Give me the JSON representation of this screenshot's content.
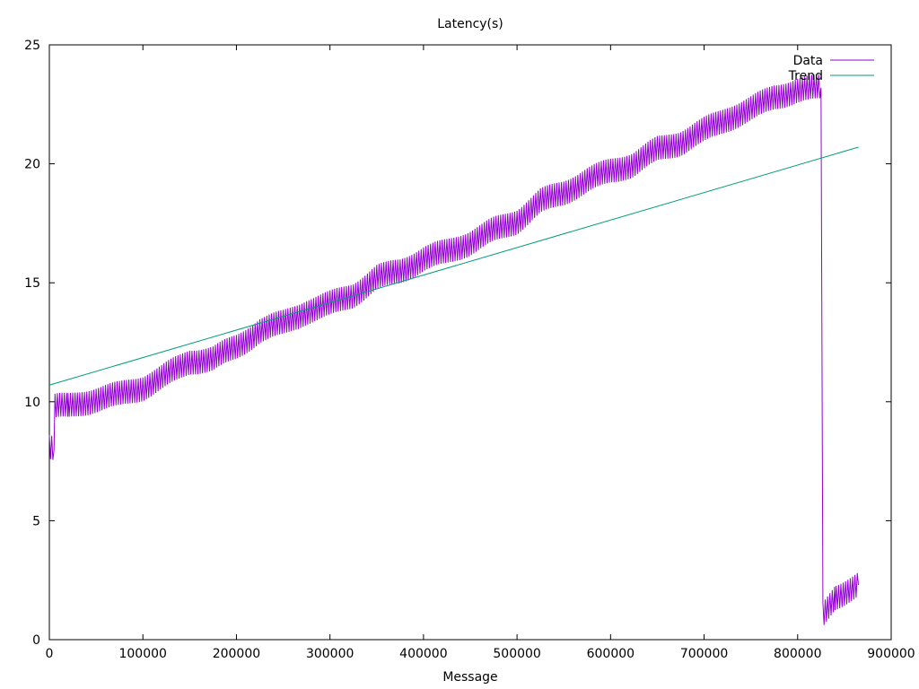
{
  "chart_data": {
    "type": "line",
    "title": "Latency(s)",
    "xlabel": "Message",
    "ylabel": "",
    "xlim": [
      0,
      900000
    ],
    "ylim": [
      0,
      25
    ],
    "x_ticks": [
      0,
      100000,
      200000,
      300000,
      400000,
      500000,
      600000,
      700000,
      800000,
      900000
    ],
    "y_ticks": [
      0,
      5,
      10,
      15,
      20,
      25
    ],
    "grid": false,
    "legend_position": "top-right",
    "series": [
      {
        "name": "Data",
        "color": "#9400d3",
        "style": "oscillating line (about ±0.5 s sawtooth around the trend)",
        "points": [
          [
            0,
            8.1
          ],
          [
            5000,
            8.0
          ],
          [
            6000,
            9.8
          ],
          [
            20000,
            9.8
          ],
          [
            50000,
            10.1
          ],
          [
            75000,
            10.3
          ],
          [
            100000,
            10.6
          ],
          [
            120000,
            11.0
          ],
          [
            150000,
            11.7
          ],
          [
            175000,
            11.8
          ],
          [
            200000,
            12.3
          ],
          [
            225000,
            13.0
          ],
          [
            250000,
            13.3
          ],
          [
            275000,
            13.8
          ],
          [
            300000,
            14.1
          ],
          [
            325000,
            14.5
          ],
          [
            350000,
            15.2
          ],
          [
            375000,
            15.5
          ],
          [
            400000,
            16.0
          ],
          [
            425000,
            16.3
          ],
          [
            450000,
            16.7
          ],
          [
            475000,
            17.2
          ],
          [
            500000,
            17.6
          ],
          [
            525000,
            18.4
          ],
          [
            550000,
            18.8
          ],
          [
            575000,
            19.3
          ],
          [
            600000,
            19.7
          ],
          [
            625000,
            20.0
          ],
          [
            650000,
            20.6
          ],
          [
            675000,
            20.9
          ],
          [
            700000,
            21.4
          ],
          [
            725000,
            21.9
          ],
          [
            750000,
            22.3
          ],
          [
            775000,
            22.8
          ],
          [
            800000,
            23.1
          ],
          [
            825000,
            23.2
          ],
          [
            827000,
            1.0
          ],
          [
            840000,
            1.8
          ],
          [
            865000,
            2.3
          ]
        ]
      },
      {
        "name": "Trend",
        "color": "#009e73",
        "points": [
          [
            0,
            10.7
          ],
          [
            865000,
            20.7
          ]
        ]
      }
    ]
  }
}
